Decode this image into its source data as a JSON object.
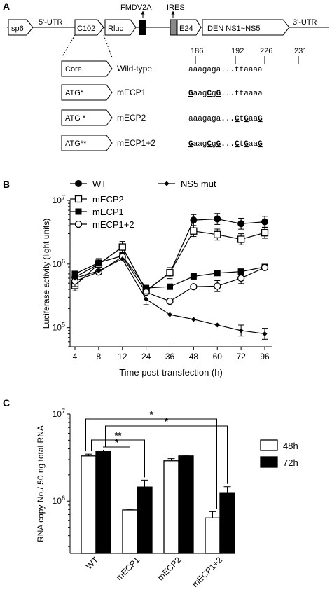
{
  "panel_a": {
    "label": "A",
    "construct": {
      "sp6": "sp6",
      "utr5": "5'-UTR",
      "c102": "C102",
      "rluc": "Rluc",
      "fmdv2a": "FMDV2A",
      "ires": "IRES",
      "e24": "E24",
      "ns": "DEN NS1~NS5",
      "utr3": "3'-UTR"
    },
    "positions": [
      "186",
      "192",
      "226",
      "231"
    ],
    "rows": [
      {
        "box": "Core",
        "name": "Wild-type",
        "seq_parts": [
          {
            "t": "aaagaga",
            "b": false
          },
          {
            "t": "...",
            "b": false
          },
          {
            "t": "ttaaaa",
            "b": false
          }
        ]
      },
      {
        "box": "ATG*",
        "name": "mECP1",
        "seq_parts": [
          {
            "t": "G",
            "b": true
          },
          {
            "t": "aag",
            "b": false
          },
          {
            "t": "C",
            "b": true
          },
          {
            "t": "g",
            "b": false
          },
          {
            "t": "G",
            "b": true
          },
          {
            "t": "...",
            "b": false
          },
          {
            "t": "ttaaaa",
            "b": false
          }
        ]
      },
      {
        "box": "ATG  *",
        "name": "mECP2",
        "seq_parts": [
          {
            "t": "aaagaga",
            "b": false
          },
          {
            "t": "...",
            "b": true
          },
          {
            "t": "C",
            "b": true
          },
          {
            "t": "t",
            "b": false
          },
          {
            "t": "G",
            "b": true
          },
          {
            "t": "aa",
            "b": false
          },
          {
            "t": "G",
            "b": true
          }
        ]
      },
      {
        "box": "ATG**",
        "name": "mECP1+2",
        "seq_parts": [
          {
            "t": "G",
            "b": true
          },
          {
            "t": "aag",
            "b": false
          },
          {
            "t": "C",
            "b": true
          },
          {
            "t": "g",
            "b": false
          },
          {
            "t": "G",
            "b": true
          },
          {
            "t": "...",
            "b": true
          },
          {
            "t": "C",
            "b": true
          },
          {
            "t": "t",
            "b": false
          },
          {
            "t": "G",
            "b": true
          },
          {
            "t": "aa",
            "b": false
          },
          {
            "t": "G",
            "b": true
          }
        ]
      }
    ]
  },
  "panel_b": {
    "label": "B"
  },
  "panel_c": {
    "label": "C",
    "sig": [
      "**",
      "*",
      "*",
      "*"
    ]
  },
  "chart_data": [
    {
      "type": "line",
      "ylabel": "Luciferase activity (light units)",
      "xlabel": "Time post-transfection (h)",
      "x": [
        4,
        8,
        12,
        24,
        36,
        48,
        60,
        72,
        96
      ],
      "yscale": "log",
      "ylim": [
        50000,
        10000000
      ],
      "yticks": [
        "10^5",
        "10^6",
        "10^7"
      ],
      "legend": "top, two columns",
      "series": [
        {
          "name": "WT",
          "marker": "filled-circle",
          "values": [
            620000,
            1000000,
            1850000,
            380000,
            720000,
            4900000,
            5100000,
            4300000,
            4600000
          ]
        },
        {
          "name": "mECP2",
          "marker": "open-square",
          "values": [
            460000,
            1000000,
            1850000,
            380000,
            730000,
            3300000,
            2900000,
            2450000,
            3100000
          ]
        },
        {
          "name": "mECP1",
          "marker": "filled-square",
          "values": [
            700000,
            1050000,
            1350000,
            420000,
            440000,
            640000,
            720000,
            760000,
            900000
          ]
        },
        {
          "name": "mECP1+2",
          "marker": "open-circle",
          "values": [
            540000,
            750000,
            1300000,
            360000,
            260000,
            440000,
            450000,
            600000,
            880000
          ]
        },
        {
          "name": "NS5 mut",
          "marker": "filled-diamond",
          "values": [
            600000,
            780000,
            1200000,
            280000,
            160000,
            135000,
            110000,
            90000,
            80000
          ]
        }
      ]
    },
    {
      "type": "bar",
      "ylabel": "RNA copy No./ 50 ng total RNA",
      "categories": [
        "WT",
        "mECP1",
        "mECP2",
        "mECP1+2"
      ],
      "yscale": "log",
      "ylim": [
        250000,
        10000000
      ],
      "yticks": [
        "10^6",
        "10^7"
      ],
      "legend": "right",
      "series": [
        {
          "name": "48h",
          "color": "#ffffff",
          "values": [
            3300000,
            790000,
            2900000,
            640000
          ]
        },
        {
          "name": "72h",
          "color": "#000000",
          "values": [
            3700000,
            1450000,
            3300000,
            1250000
          ]
        }
      ]
    }
  ]
}
